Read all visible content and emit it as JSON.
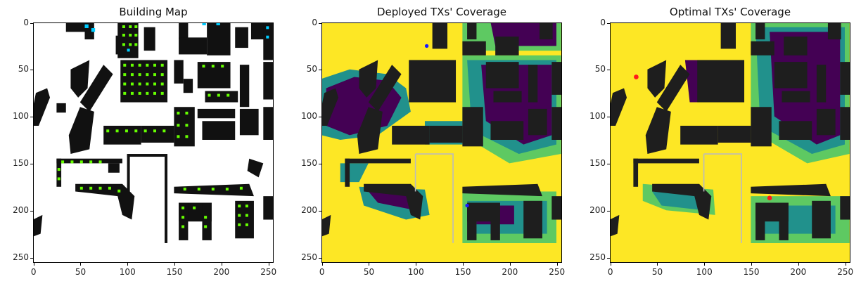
{
  "figure": {
    "panels": [
      {
        "title": "Building Map",
        "x_ticks": [
          "0",
          "50",
          "100",
          "150",
          "200",
          "250"
        ],
        "y_ticks": [
          "0",
          "50",
          "100",
          "150",
          "200",
          "250"
        ]
      },
      {
        "title": "Deployed TXs' Coverage",
        "x_ticks": [
          "0",
          "50",
          "100",
          "150",
          "200",
          "250"
        ],
        "y_ticks": [
          "0",
          "50",
          "100",
          "150",
          "200",
          "250"
        ]
      },
      {
        "title": "Optimal TXs' Coverage",
        "x_ticks": [
          "0",
          "50",
          "100",
          "150",
          "200",
          "250"
        ],
        "y_ticks": [
          "0",
          "50",
          "100",
          "150",
          "200",
          "250"
        ]
      }
    ]
  },
  "colors": {
    "building": "#1e1e1e",
    "background_map": "#ffffff",
    "marker_green": "#66ff00",
    "marker_cyan": "#00ccff",
    "coverage_yellow": "#fde725",
    "coverage_green": "#5ec962",
    "coverage_teal": "#21918c",
    "coverage_purple": "#440154",
    "tx_deployed": "#1a1aff",
    "tx_optimal": "#ff1a1a"
  }
}
